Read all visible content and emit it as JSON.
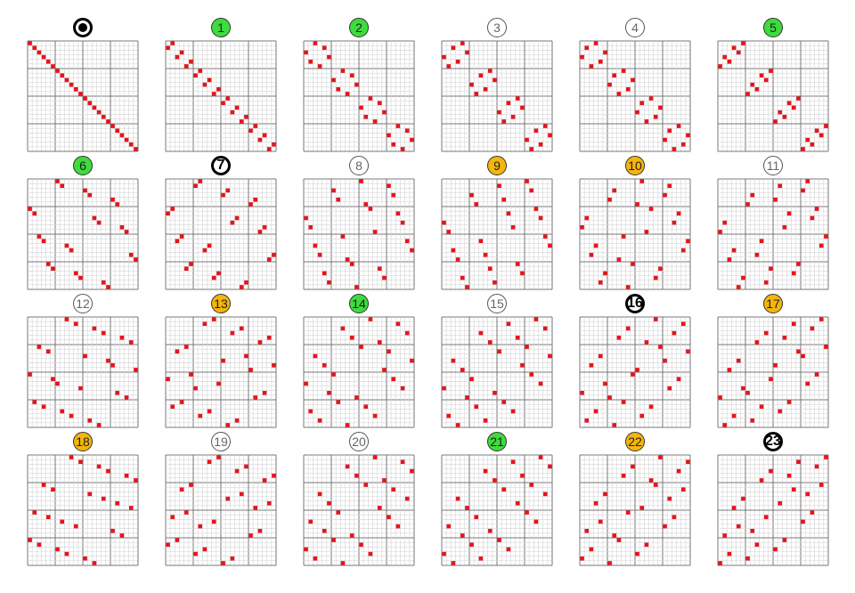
{
  "badge_colors": {
    "green": "#3ddc3d",
    "orange": "#f5b50a",
    "plain": "#ffffff"
  },
  "mark_color": "#e8141c",
  "grid_size": 24,
  "major_every": 6,
  "panels": [
    {
      "label": "",
      "badge": "target",
      "perm": [
        0,
        1,
        2,
        3,
        4,
        5,
        6,
        7,
        8,
        9,
        10,
        11,
        12,
        13,
        14,
        15,
        16,
        17,
        18,
        19,
        20,
        21,
        22,
        23
      ]
    },
    {
      "label": "1",
      "badge": "green",
      "perm": [
        1,
        0,
        3,
        2,
        5,
        4,
        7,
        6,
        9,
        8,
        11,
        10,
        13,
        12,
        15,
        14,
        17,
        16,
        19,
        18,
        21,
        20,
        23,
        22
      ]
    },
    {
      "label": "2",
      "badge": "green",
      "perm": [
        2,
        4,
        0,
        5,
        1,
        3,
        8,
        10,
        6,
        11,
        7,
        9,
        14,
        16,
        12,
        17,
        13,
        15,
        20,
        22,
        18,
        23,
        19,
        21
      ]
    },
    {
      "label": "3",
      "badge": "plain",
      "perm": [
        4,
        2,
        5,
        0,
        3,
        1,
        10,
        8,
        11,
        6,
        9,
        7,
        16,
        14,
        17,
        12,
        15,
        13,
        22,
        20,
        23,
        18,
        21,
        19
      ]
    },
    {
      "label": "4",
      "badge": "plain",
      "perm": [
        3,
        1,
        5,
        0,
        4,
        2,
        9,
        7,
        11,
        6,
        10,
        8,
        15,
        13,
        17,
        12,
        16,
        14,
        21,
        19,
        23,
        18,
        22,
        20
      ]
    },
    {
      "label": "5",
      "badge": "green",
      "perm": [
        5,
        3,
        4,
        1,
        2,
        0,
        11,
        9,
        10,
        7,
        8,
        6,
        17,
        15,
        16,
        13,
        14,
        12,
        23,
        21,
        22,
        19,
        20,
        18
      ]
    },
    {
      "label": "6",
      "badge": "green",
      "perm": [
        6,
        7,
        12,
        13,
        18,
        19,
        0,
        1,
        14,
        15,
        20,
        21,
        2,
        3,
        8,
        9,
        22,
        23,
        4,
        5,
        10,
        11,
        16,
        17
      ]
    },
    {
      "label": "7",
      "badge": "bold",
      "perm": [
        7,
        6,
        13,
        12,
        19,
        18,
        1,
        0,
        15,
        14,
        21,
        20,
        3,
        2,
        9,
        8,
        23,
        22,
        5,
        4,
        11,
        10,
        17,
        16
      ]
    },
    {
      "label": "8",
      "badge": "plain",
      "perm": [
        12,
        18,
        6,
        19,
        7,
        13,
        14,
        20,
        0,
        21,
        1,
        15,
        8,
        22,
        2,
        23,
        3,
        9,
        10,
        16,
        4,
        17,
        5,
        11
      ]
    },
    {
      "label": "9",
      "badge": "orange",
      "perm": [
        18,
        12,
        19,
        6,
        13,
        7,
        20,
        14,
        21,
        0,
        15,
        1,
        22,
        8,
        23,
        2,
        9,
        3,
        16,
        10,
        17,
        4,
        11,
        5
      ]
    },
    {
      "label": "10",
      "badge": "orange",
      "perm": [
        13,
        19,
        7,
        18,
        6,
        12,
        15,
        21,
        1,
        20,
        0,
        14,
        9,
        23,
        3,
        22,
        2,
        8,
        11,
        17,
        5,
        16,
        4,
        10
      ]
    },
    {
      "label": "11",
      "badge": "plain",
      "perm": [
        19,
        13,
        18,
        7,
        12,
        6,
        21,
        15,
        20,
        1,
        14,
        0,
        23,
        9,
        22,
        3,
        8,
        2,
        17,
        11,
        16,
        5,
        10,
        4
      ]
    },
    {
      "label": "12",
      "badge": "plain",
      "perm": [
        8,
        10,
        14,
        16,
        20,
        22,
        2,
        4,
        12,
        17,
        18,
        23,
        0,
        5,
        6,
        11,
        19,
        21,
        1,
        3,
        7,
        9,
        13,
        15
      ]
    },
    {
      "label": "13",
      "badge": "orange",
      "perm": [
        10,
        8,
        16,
        14,
        22,
        20,
        4,
        2,
        17,
        12,
        23,
        18,
        5,
        0,
        11,
        6,
        21,
        19,
        3,
        1,
        9,
        7,
        15,
        13
      ]
    },
    {
      "label": "14",
      "badge": "green",
      "perm": [
        14,
        20,
        8,
        22,
        10,
        16,
        12,
        18,
        2,
        23,
        4,
        17,
        6,
        19,
        0,
        21,
        5,
        11,
        7,
        13,
        1,
        15,
        3,
        9
      ]
    },
    {
      "label": "15",
      "badge": "plain",
      "perm": [
        20,
        14,
        22,
        8,
        16,
        10,
        18,
        12,
        23,
        2,
        17,
        4,
        19,
        6,
        21,
        0,
        11,
        5,
        13,
        7,
        15,
        1,
        9,
        3
      ]
    },
    {
      "label": "16",
      "badge": "bold",
      "perm": [
        16,
        22,
        10,
        20,
        8,
        14,
        17,
        23,
        4,
        18,
        2,
        12,
        11,
        21,
        5,
        19,
        0,
        6,
        9,
        15,
        3,
        13,
        1,
        7
      ]
    },
    {
      "label": "17",
      "badge": "orange",
      "perm": [
        22,
        16,
        20,
        10,
        14,
        8,
        23,
        17,
        18,
        4,
        12,
        2,
        21,
        11,
        19,
        5,
        6,
        0,
        15,
        9,
        13,
        3,
        7,
        1
      ]
    },
    {
      "label": "18",
      "badge": "orange",
      "perm": [
        9,
        11,
        15,
        17,
        21,
        23,
        3,
        5,
        13,
        16,
        19,
        22,
        1,
        4,
        7,
        10,
        18,
        20,
        0,
        2,
        6,
        8,
        12,
        14
      ]
    },
    {
      "label": "19",
      "badge": "plain",
      "perm": [
        11,
        9,
        17,
        15,
        23,
        21,
        5,
        3,
        16,
        13,
        22,
        19,
        4,
        1,
        10,
        7,
        20,
        18,
        2,
        0,
        8,
        6,
        14,
        12
      ]
    },
    {
      "label": "20",
      "badge": "plain",
      "perm": [
        15,
        21,
        9,
        23,
        11,
        17,
        13,
        19,
        3,
        22,
        5,
        16,
        7,
        18,
        1,
        20,
        4,
        10,
        6,
        12,
        0,
        14,
        2,
        8
      ]
    },
    {
      "label": "21",
      "badge": "green",
      "perm": [
        21,
        15,
        23,
        9,
        17,
        11,
        19,
        13,
        22,
        3,
        16,
        5,
        18,
        7,
        20,
        1,
        10,
        4,
        12,
        6,
        14,
        0,
        8,
        2
      ]
    },
    {
      "label": "22",
      "badge": "orange",
      "perm": [
        17,
        23,
        11,
        21,
        9,
        15,
        16,
        22,
        5,
        19,
        3,
        13,
        10,
        20,
        4,
        18,
        1,
        7,
        8,
        14,
        2,
        12,
        0,
        6
      ]
    },
    {
      "label": "23",
      "badge": "bold",
      "perm": [
        23,
        17,
        21,
        11,
        15,
        9,
        22,
        16,
        19,
        5,
        13,
        3,
        20,
        10,
        18,
        4,
        7,
        1,
        14,
        8,
        12,
        2,
        6,
        0
      ]
    }
  ]
}
